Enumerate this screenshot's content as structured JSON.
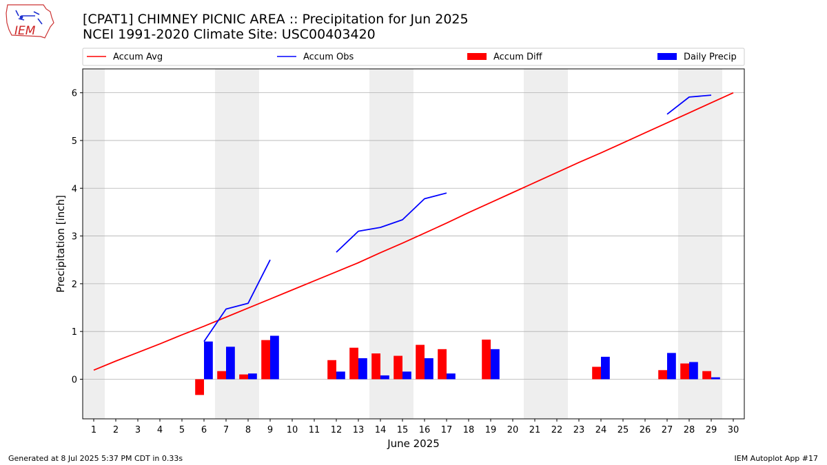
{
  "header": {
    "title_line1": "[CPAT1] CHIMNEY PICNIC AREA :: Precipitation for Jun 2025",
    "title_line2": "NCEI 1991-2020 Climate Site: USC00403420",
    "logo_text": "IEM"
  },
  "footer": {
    "left": "Generated at 8 Jul 2025 5:37 PM CDT in 0.33s",
    "right": "IEM Autoplot App #17"
  },
  "colors": {
    "avg": "#ff0000",
    "obs": "#0000ff",
    "diff": "#ff0000",
    "daily": "#0000ff",
    "weekend_band": "#eeeeee",
    "grid": "#b0b0b0"
  },
  "chart_data": {
    "type": "bar",
    "xlabel": "June 2025",
    "ylabel": "Precipitation [inch]",
    "xlim": [
      0.5,
      30.5
    ],
    "ylim": [
      -0.83,
      6.5
    ],
    "yticks": [
      0,
      1,
      2,
      3,
      4,
      5,
      6
    ],
    "xticks": [
      1,
      2,
      3,
      4,
      5,
      6,
      7,
      8,
      9,
      10,
      11,
      12,
      13,
      14,
      15,
      16,
      17,
      18,
      19,
      20,
      21,
      22,
      23,
      24,
      25,
      26,
      27,
      28,
      29,
      30
    ],
    "grid": "horizontal",
    "legend_placement": "top, above plot",
    "weekend_days": [
      1,
      7,
      8,
      14,
      15,
      21,
      22,
      28,
      29
    ],
    "series": [
      {
        "name": "Accum Avg",
        "kind": "line",
        "x": [
          1,
          2,
          3,
          4,
          5,
          6,
          7,
          8,
          9,
          10,
          11,
          12,
          13,
          14,
          15,
          16,
          17,
          18,
          19,
          20,
          21,
          22,
          23,
          24,
          25,
          26,
          27,
          28,
          29,
          30
        ],
        "values": [
          0.19,
          0.38,
          0.56,
          0.74,
          0.93,
          1.11,
          1.3,
          1.49,
          1.68,
          1.87,
          2.06,
          2.25,
          2.44,
          2.65,
          2.85,
          3.06,
          3.27,
          3.49,
          3.7,
          3.91,
          4.12,
          4.33,
          4.54,
          4.74,
          4.95,
          5.16,
          5.37,
          5.58,
          5.79,
          6.0
        ]
      },
      {
        "name": "Accum Obs",
        "kind": "line",
        "segments": [
          {
            "x": [
              6,
              7,
              8,
              9
            ],
            "values": [
              0.79,
              1.47,
              1.59,
              2.5
            ]
          },
          {
            "x": [
              12,
              13,
              14,
              15,
              16,
              17
            ],
            "values": [
              2.66,
              3.1,
              3.18,
              3.34,
              3.78,
              3.9
            ]
          },
          {
            "x": [
              27,
              28,
              29
            ],
            "values": [
              5.55,
              5.91,
              5.95
            ]
          }
        ]
      },
      {
        "name": "Accum Diff",
        "kind": "bar",
        "offset": -0.2,
        "x": [
          6,
          7,
          8,
          9,
          12,
          13,
          14,
          15,
          16,
          17,
          19,
          24,
          27,
          28,
          29
        ],
        "values": [
          -0.33,
          0.17,
          0.1,
          0.82,
          0.4,
          0.66,
          0.54,
          0.49,
          0.72,
          0.63,
          0.83,
          0.26,
          0.19,
          0.33,
          0.17
        ]
      },
      {
        "name": "Daily Precip",
        "kind": "bar",
        "offset": 0.2,
        "x": [
          6,
          7,
          8,
          9,
          12,
          13,
          14,
          15,
          16,
          17,
          19,
          24,
          27,
          28,
          29
        ],
        "values": [
          0.79,
          0.68,
          0.12,
          0.91,
          0.16,
          0.44,
          0.08,
          0.16,
          0.44,
          0.12,
          0.63,
          0.47,
          0.55,
          0.36,
          0.04
        ]
      }
    ]
  }
}
